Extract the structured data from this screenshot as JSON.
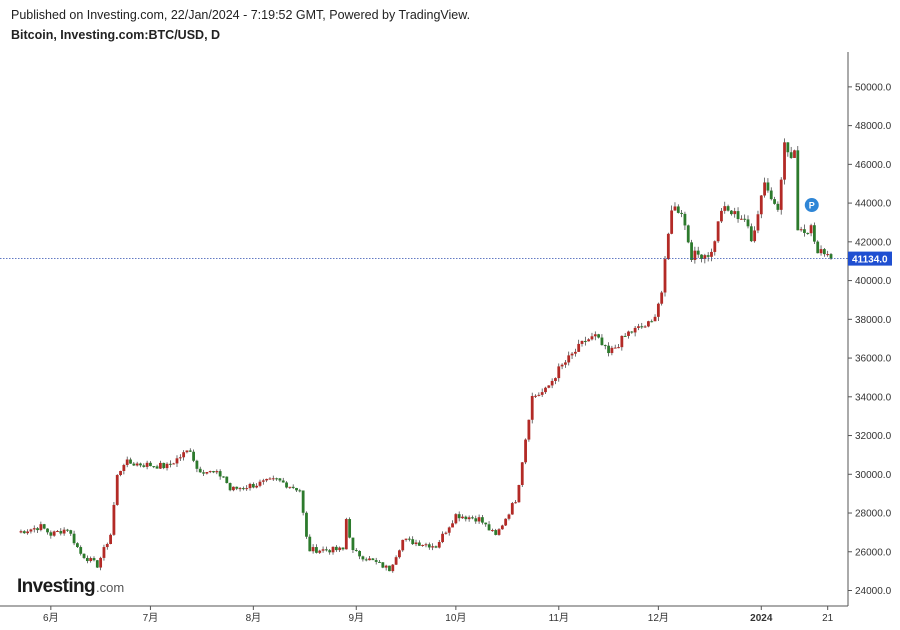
{
  "header": {
    "published": "Published on Investing.com, 22/Jan/2024 - 7:19:52 GMT, Powered by TradingView.",
    "title": "Bitcoin, Investing.com:BTC/USD, D"
  },
  "logo": {
    "brand": "Investing",
    "domain": ".com"
  },
  "colors": {
    "up": "#b32a26",
    "down": "#2c7a2c",
    "price_line": "#2f4fb0",
    "price_label_bg": "#1f4fd1",
    "marker": "#2f86d6"
  },
  "marker_label": "P",
  "chart_data": {
    "type": "candlestick",
    "title": "Bitcoin, Investing.com:BTC/USD, D",
    "ylim": [
      23200,
      51800
    ],
    "y_ticks": [
      24000,
      26000,
      28000,
      30000,
      32000,
      34000,
      36000,
      38000,
      40000,
      42000,
      44000,
      46000,
      48000,
      50000
    ],
    "y_tick_labels": [
      "24000.0",
      "26000.0",
      "28000.0",
      "30000.0",
      "32000.0",
      "34000.0",
      "36000.0",
      "38000.0",
      "40000.0",
      "42000.0",
      "44000.0",
      "46000.0",
      "48000.0",
      "50000.0"
    ],
    "x_tick_labels": [
      "6月",
      "7月",
      "8月",
      "9月",
      "10月",
      "11月",
      "12月",
      "2024",
      "21"
    ],
    "current_price": 41134.0,
    "current_price_label": "41134.0",
    "grid": false,
    "legend": "none",
    "anchors": [
      [
        "2023-05-22",
        27000
      ],
      [
        "2023-05-29",
        27300
      ],
      [
        "2023-06-01",
        26900
      ],
      [
        "2023-06-06",
        27200
      ],
      [
        "2023-06-10",
        25900
      ],
      [
        "2023-06-15",
        25300
      ],
      [
        "2023-06-19",
        26900
      ],
      [
        "2023-06-21",
        29900
      ],
      [
        "2023-06-23",
        30600
      ],
      [
        "2023-07-06",
        30400
      ],
      [
        "2023-07-13",
        31300
      ],
      [
        "2023-07-15",
        30300
      ],
      [
        "2023-07-23",
        29900
      ],
      [
        "2023-07-25",
        29200
      ],
      [
        "2023-08-08",
        29700
      ],
      [
        "2023-08-15",
        29200
      ],
      [
        "2023-08-17",
        26700
      ],
      [
        "2023-08-18",
        26100
      ],
      [
        "2023-08-28",
        26100
      ],
      [
        "2023-08-29",
        27700
      ],
      [
        "2023-08-31",
        26000
      ],
      [
        "2023-09-11",
        25100
      ],
      [
        "2023-09-15",
        26600
      ],
      [
        "2023-09-25",
        26300
      ],
      [
        "2023-10-01",
        27900
      ],
      [
        "2023-10-08",
        27700
      ],
      [
        "2023-10-13",
        26800
      ],
      [
        "2023-10-19",
        28700
      ],
      [
        "2023-10-20",
        29600
      ],
      [
        "2023-10-23",
        33000
      ],
      [
        "2023-10-24",
        34000
      ],
      [
        "2023-10-28",
        34300
      ],
      [
        "2023-11-01",
        35400
      ],
      [
        "2023-11-09",
        36900
      ],
      [
        "2023-11-12",
        37100
      ],
      [
        "2023-11-16",
        36200
      ],
      [
        "2023-11-22",
        37300
      ],
      [
        "2023-11-29",
        37800
      ],
      [
        "2023-12-02",
        39400
      ],
      [
        "2023-12-05",
        43800
      ],
      [
        "2023-12-08",
        43600
      ],
      [
        "2023-12-11",
        41300
      ],
      [
        "2023-12-17",
        41400
      ],
      [
        "2023-12-20",
        43700
      ],
      [
        "2023-12-27",
        43200
      ],
      [
        "2023-12-29",
        42000
      ],
      [
        "2024-01-02",
        45200
      ],
      [
        "2024-01-04",
        44200
      ],
      [
        "2024-01-06",
        43900
      ],
      [
        "2024-01-08",
        47000
      ],
      [
        "2024-01-10",
        46300
      ],
      [
        "2024-01-11",
        46500
      ],
      [
        "2024-01-12",
        42800
      ],
      [
        "2024-01-15",
        42500
      ],
      [
        "2024-01-16",
        43100
      ],
      [
        "2024-01-18",
        41300
      ],
      [
        "2024-01-20",
        41600
      ],
      [
        "2024-01-22",
        41134
      ]
    ]
  }
}
